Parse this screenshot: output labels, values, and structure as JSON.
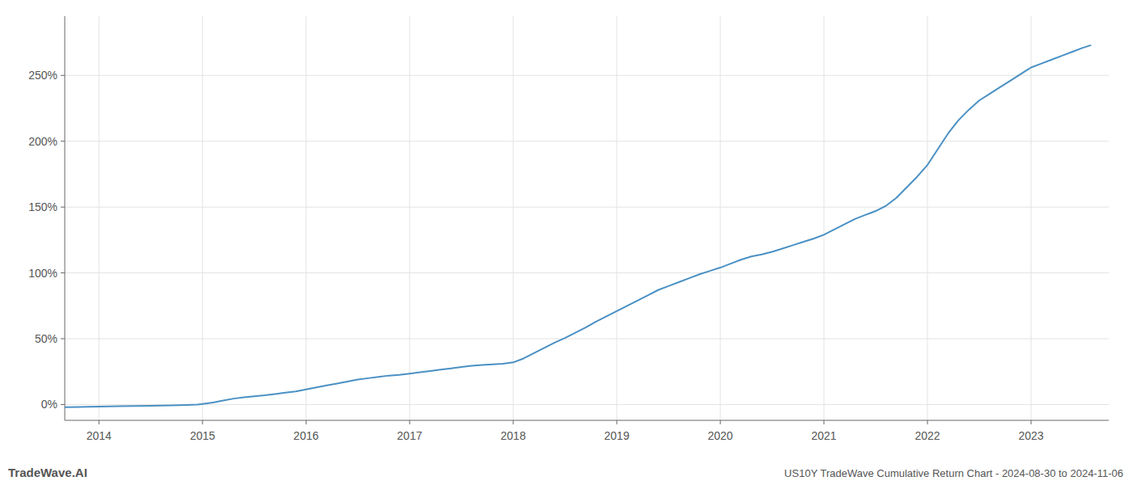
{
  "chart_data": {
    "type": "line",
    "title": "US10Y TradeWave Cumulative Return Chart - 2024-08-30 to 2024-11-06",
    "annotations": [
      "TradeWave.AI"
    ],
    "color": "#4a90c4",
    "grid": true,
    "xlim": [
      2013.67,
      2023.75
    ],
    "ylim": [
      -12,
      295
    ],
    "xticks": [
      2014,
      2015,
      2016,
      2017,
      2018,
      2019,
      2020,
      2021,
      2022,
      2023
    ],
    "yticks": [
      {
        "value": 0,
        "label": "0%"
      },
      {
        "value": 50,
        "label": "50%"
      },
      {
        "value": 100,
        "label": "100%"
      },
      {
        "value": 150,
        "label": "150%"
      },
      {
        "value": 200,
        "label": "200%"
      },
      {
        "value": 250,
        "label": "250%"
      }
    ],
    "x": [
      2013.67,
      2013.8,
      2014.0,
      2014.2,
      2014.5,
      2014.7,
      2014.85,
      2014.95,
      2015.0,
      2015.1,
      2015.2,
      2015.3,
      2015.4,
      2015.5,
      2015.6,
      2015.7,
      2015.8,
      2015.9,
      2016.0,
      2016.1,
      2016.2,
      2016.3,
      2016.4,
      2016.5,
      2016.6,
      2016.7,
      2016.8,
      2016.9,
      2017.0,
      2017.1,
      2017.2,
      2017.3,
      2017.4,
      2017.5,
      2017.6,
      2017.7,
      2017.8,
      2017.9,
      2018.0,
      2018.1,
      2018.2,
      2018.3,
      2018.4,
      2018.5,
      2018.6,
      2018.7,
      2018.8,
      2018.9,
      2019.0,
      2019.1,
      2019.2,
      2019.3,
      2019.4,
      2019.5,
      2019.6,
      2019.7,
      2019.8,
      2019.9,
      2020.0,
      2020.1,
      2020.2,
      2020.3,
      2020.4,
      2020.5,
      2020.6,
      2020.7,
      2020.8,
      2020.9,
      2021.0,
      2021.1,
      2021.2,
      2021.3,
      2021.4,
      2021.45,
      2021.5,
      2021.6,
      2021.7,
      2021.8,
      2021.9,
      2022.0,
      2022.1,
      2022.2,
      2022.3,
      2022.4,
      2022.5,
      2022.6,
      2022.7,
      2022.8,
      2022.9,
      2023.0,
      2023.1,
      2023.2,
      2023.3,
      2023.4,
      2023.5,
      2023.58
    ],
    "values": [
      -2.0,
      -1.8,
      -1.5,
      -1.3,
      -1.0,
      -0.7,
      -0.3,
      0.0,
      0.5,
      1.5,
      3.0,
      4.5,
      5.5,
      6.2,
      7.0,
      8.0,
      9.0,
      10.0,
      11.5,
      13.0,
      14.5,
      16.0,
      17.5,
      19.0,
      20.0,
      21.0,
      22.0,
      22.5,
      23.5,
      24.5,
      25.5,
      26.5,
      27.5,
      28.5,
      29.5,
      30.0,
      30.5,
      31.0,
      32.0,
      35.0,
      39.0,
      43.0,
      47.0,
      50.5,
      54.5,
      58.5,
      63.0,
      67.0,
      71.0,
      75.0,
      79.0,
      83.0,
      87.0,
      90.0,
      93.0,
      96.0,
      99.0,
      101.5,
      104.0,
      107.0,
      110.0,
      112.5,
      114.0,
      116.0,
      118.5,
      121.0,
      123.5,
      126.0,
      129.0,
      133.0,
      137.0,
      141.0,
      144.0,
      145.5,
      147.0,
      151.0,
      157.0,
      165.0,
      173.0,
      182.0,
      194.0,
      206.0,
      216.0,
      224.0,
      231.0,
      236.0,
      241.0,
      246.0,
      251.0,
      256.0,
      259.0,
      262.0,
      265.0,
      268.0,
      271.0,
      273.0
    ]
  }
}
